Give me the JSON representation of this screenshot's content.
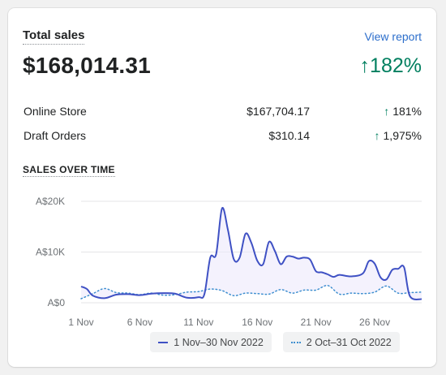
{
  "card": {
    "title": "Total sales",
    "view_report": "View report",
    "total": "$168,014.31",
    "total_change": "182%"
  },
  "rows": [
    {
      "label": "Online Store",
      "value": "$167,704.17",
      "change": "181%"
    },
    {
      "label": "Draft Orders",
      "value": "$310.14",
      "change": "1,975%"
    }
  ],
  "colors": {
    "positive": "#007f5f",
    "current_series": "#3f51c4",
    "previous_series": "#3f8fd0",
    "link": "#2c6ecb"
  },
  "chart_data": {
    "type": "line",
    "title": "SALES OVER TIME",
    "y_ticks": [
      "A$20K",
      "A$10K",
      "A$0"
    ],
    "y_tick_values": [
      20000,
      10000,
      0
    ],
    "ylim": [
      0,
      20000
    ],
    "x_ticks": [
      "1 Nov",
      "6 Nov",
      "11 Nov",
      "16 Nov",
      "21 Nov",
      "26 Nov"
    ],
    "x_tick_index": [
      1,
      6,
      11,
      16,
      21,
      26
    ],
    "grid": true,
    "legend_position": "bottom",
    "series": [
      {
        "name": "1 Nov–30 Nov 2022",
        "style": "solid",
        "x": [
          1,
          1.5,
          2,
          3,
          4,
          5,
          6,
          7,
          8,
          9,
          10,
          11,
          11.5,
          12,
          12.5,
          13,
          13.5,
          14,
          14.5,
          15,
          15.5,
          16,
          16.5,
          17,
          17.5,
          18,
          18.5,
          19,
          19.5,
          20,
          20.5,
          21,
          21.5,
          22,
          22.5,
          23,
          24,
          25,
          25.5,
          26,
          26.5,
          27,
          27.5,
          28,
          28.5,
          29,
          30
        ],
        "values": [
          3200,
          2700,
          1400,
          900,
          1600,
          1700,
          1500,
          1800,
          1900,
          1800,
          1000,
          1100,
          1700,
          8900,
          9600,
          18600,
          14400,
          8600,
          8900,
          13600,
          11800,
          8300,
          7600,
          12000,
          10200,
          7600,
          9100,
          9100,
          8700,
          8900,
          8500,
          6200,
          6000,
          5600,
          5100,
          5500,
          5200,
          5800,
          8200,
          7700,
          5000,
          4600,
          6500,
          6700,
          7000,
          1300,
          700
        ]
      },
      {
        "name": "2 Oct–31 Oct 2022",
        "style": "dotted",
        "x": [
          1,
          2,
          3,
          4,
          5,
          6,
          7,
          8,
          9,
          10,
          11,
          12,
          13,
          14,
          15,
          16,
          17,
          18,
          19,
          20,
          21,
          22,
          23,
          24,
          25,
          26,
          27,
          28,
          29,
          30
        ],
        "values": [
          800,
          1800,
          2800,
          2000,
          1900,
          1600,
          1900,
          1500,
          1600,
          2100,
          2200,
          2700,
          2400,
          1400,
          1900,
          1800,
          1700,
          2600,
          1900,
          2500,
          2500,
          3400,
          1700,
          1900,
          1800,
          2100,
          3300,
          1900,
          2000,
          2100
        ]
      }
    ]
  }
}
